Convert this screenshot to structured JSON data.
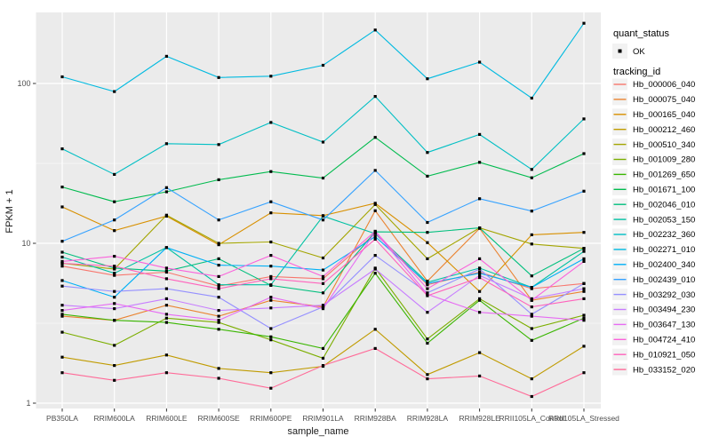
{
  "chart_data": {
    "type": "line",
    "title": "",
    "xlabel": "sample_name",
    "ylabel": "FPKM + 1",
    "y_scale": "log10",
    "ylim": [
      1,
      280
    ],
    "y_ticks": [
      "1",
      "10",
      "100"
    ],
    "y_tick_values": [
      1,
      10,
      100
    ],
    "y_minor_values": [
      3.1623,
      31.623
    ],
    "grid": "on",
    "legend_position": "right",
    "categories": [
      "PB350LA",
      "RRIM600LA",
      "RRIM600LE",
      "RRIM600SE",
      "RRIM600PE",
      "RRIM901LA",
      "RRIM928BA",
      "RRIM928LA",
      "RRIM928LE",
      "RRII105LA_Control",
      "RRII105LA_Stressed"
    ],
    "legend": {
      "quant_status_title": "quant_status",
      "quant_status_items": [
        "OK"
      ],
      "tracking_title": "tracking_id"
    },
    "series": [
      {
        "name": "Hb_000006_040",
        "color": "#F8766D",
        "values": [
          7.2,
          6.3,
          6.6,
          5.4,
          6.2,
          6.0,
          11.5,
          5.5,
          6.6,
          5.2,
          5.6
        ]
      },
      {
        "name": "Hb_000075_040",
        "color": "#EA8331",
        "values": [
          3.5,
          3.3,
          4.1,
          3.5,
          4.4,
          4.0,
          16.0,
          5.8,
          12.4,
          4.4,
          5.0
        ]
      },
      {
        "name": "Hb_000165_040",
        "color": "#D89000",
        "values": [
          16.9,
          12.0,
          14.8,
          9.8,
          15.5,
          14.9,
          17.8,
          10.1,
          5.0,
          11.3,
          11.7
        ]
      },
      {
        "name": "Hb_000212_460",
        "color": "#C09B00",
        "values": [
          1.94,
          1.72,
          2.0,
          1.65,
          1.55,
          1.7,
          2.9,
          1.51,
          2.07,
          1.42,
          2.27
        ]
      },
      {
        "name": "Hb_000510_340",
        "color": "#A3A500",
        "values": [
          7.5,
          6.9,
          15.0,
          10.0,
          10.2,
          8.1,
          17.5,
          8.0,
          12.5,
          9.9,
          9.3
        ]
      },
      {
        "name": "Hb_001009_280",
        "color": "#7CAE00",
        "values": [
          2.78,
          2.3,
          3.4,
          3.2,
          2.49,
          1.91,
          7.0,
          2.52,
          4.5,
          2.93,
          3.55
        ]
      },
      {
        "name": "Hb_001269_650",
        "color": "#39B600",
        "values": [
          3.6,
          3.3,
          3.2,
          2.9,
          2.6,
          2.2,
          6.5,
          2.37,
          4.4,
          2.47,
          3.4
        ]
      },
      {
        "name": "Hb_001671_100",
        "color": "#00BB4E",
        "values": [
          22.5,
          18.2,
          21.0,
          25.0,
          28.1,
          25.6,
          46.0,
          26.3,
          32.1,
          25.7,
          36.4
        ]
      },
      {
        "name": "Hb_002046_010",
        "color": "#00BF7D",
        "values": [
          8.8,
          7.0,
          6.7,
          8.0,
          5.45,
          4.9,
          11.8,
          11.7,
          12.5,
          6.25,
          9.3
        ]
      },
      {
        "name": "Hb_002053_150",
        "color": "#00C1A3",
        "values": [
          8.2,
          6.5,
          9.4,
          5.5,
          5.5,
          14.8,
          11.5,
          5.7,
          7.0,
          5.3,
          8.9
        ]
      },
      {
        "name": "Hb_002232_360",
        "color": "#00BFC4",
        "values": [
          39,
          27,
          42,
          41.5,
          57,
          43,
          83,
          37,
          48,
          29,
          60
        ]
      },
      {
        "name": "Hb_002271_010",
        "color": "#00BAE0",
        "values": [
          110,
          89,
          148,
          109,
          111,
          130,
          216,
          107,
          136,
          81,
          238
        ]
      },
      {
        "name": "Hb_002400_340",
        "color": "#00B0F6",
        "values": [
          5.85,
          4.6,
          9.4,
          7.3,
          7.2,
          6.8,
          11.0,
          5.6,
          6.5,
          5.3,
          8.0
        ]
      },
      {
        "name": "Hb_002439_010",
        "color": "#35A2FF",
        "values": [
          10.3,
          14.0,
          22.3,
          14.0,
          18.2,
          14.0,
          28.6,
          13.5,
          19.0,
          15.9,
          21.2
        ]
      },
      {
        "name": "Hb_003292_030",
        "color": "#9590FF",
        "values": [
          5.4,
          5.0,
          5.2,
          4.6,
          2.93,
          4.0,
          8.4,
          4.9,
          6.9,
          3.6,
          5.6
        ]
      },
      {
        "name": "Hb_003494_230",
        "color": "#C77CFF",
        "values": [
          4.1,
          3.9,
          4.5,
          3.8,
          3.94,
          4.1,
          6.9,
          3.7,
          6.3,
          4.5,
          5.2
        ]
      },
      {
        "name": "Hb_003647_130",
        "color": "#E76BF3",
        "values": [
          3.8,
          4.2,
          3.6,
          3.3,
          4.6,
          3.9,
          11.8,
          4.8,
          3.7,
          3.5,
          3.3
        ]
      },
      {
        "name": "Hb_004724_410",
        "color": "#FA62DB",
        "values": [
          7.7,
          8.3,
          7.0,
          6.2,
          8.4,
          6.2,
          11.9,
          5.2,
          8.0,
          4.4,
          7.7
        ]
      },
      {
        "name": "Hb_010921_050",
        "color": "#FF62BC",
        "values": [
          7.5,
          7.2,
          6.0,
          5.2,
          6.0,
          5.6,
          10.6,
          4.7,
          6.1,
          4.0,
          4.5
        ]
      },
      {
        "name": "Hb_033152_020",
        "color": "#FF6A98",
        "values": [
          1.55,
          1.39,
          1.55,
          1.43,
          1.24,
          1.72,
          2.2,
          1.42,
          1.48,
          1.1,
          1.55
        ]
      }
    ]
  },
  "colors": {
    "panel_bg": "#EBEBEB",
    "grid": "#FFFFFF",
    "tick_text": "#4D4D4D",
    "axis_title": "#1A1A1A",
    "legend_text": "#000000",
    "legend_key_bg": "#F2F2F2",
    "point": "#000000",
    "tick_mark": "#333333"
  }
}
